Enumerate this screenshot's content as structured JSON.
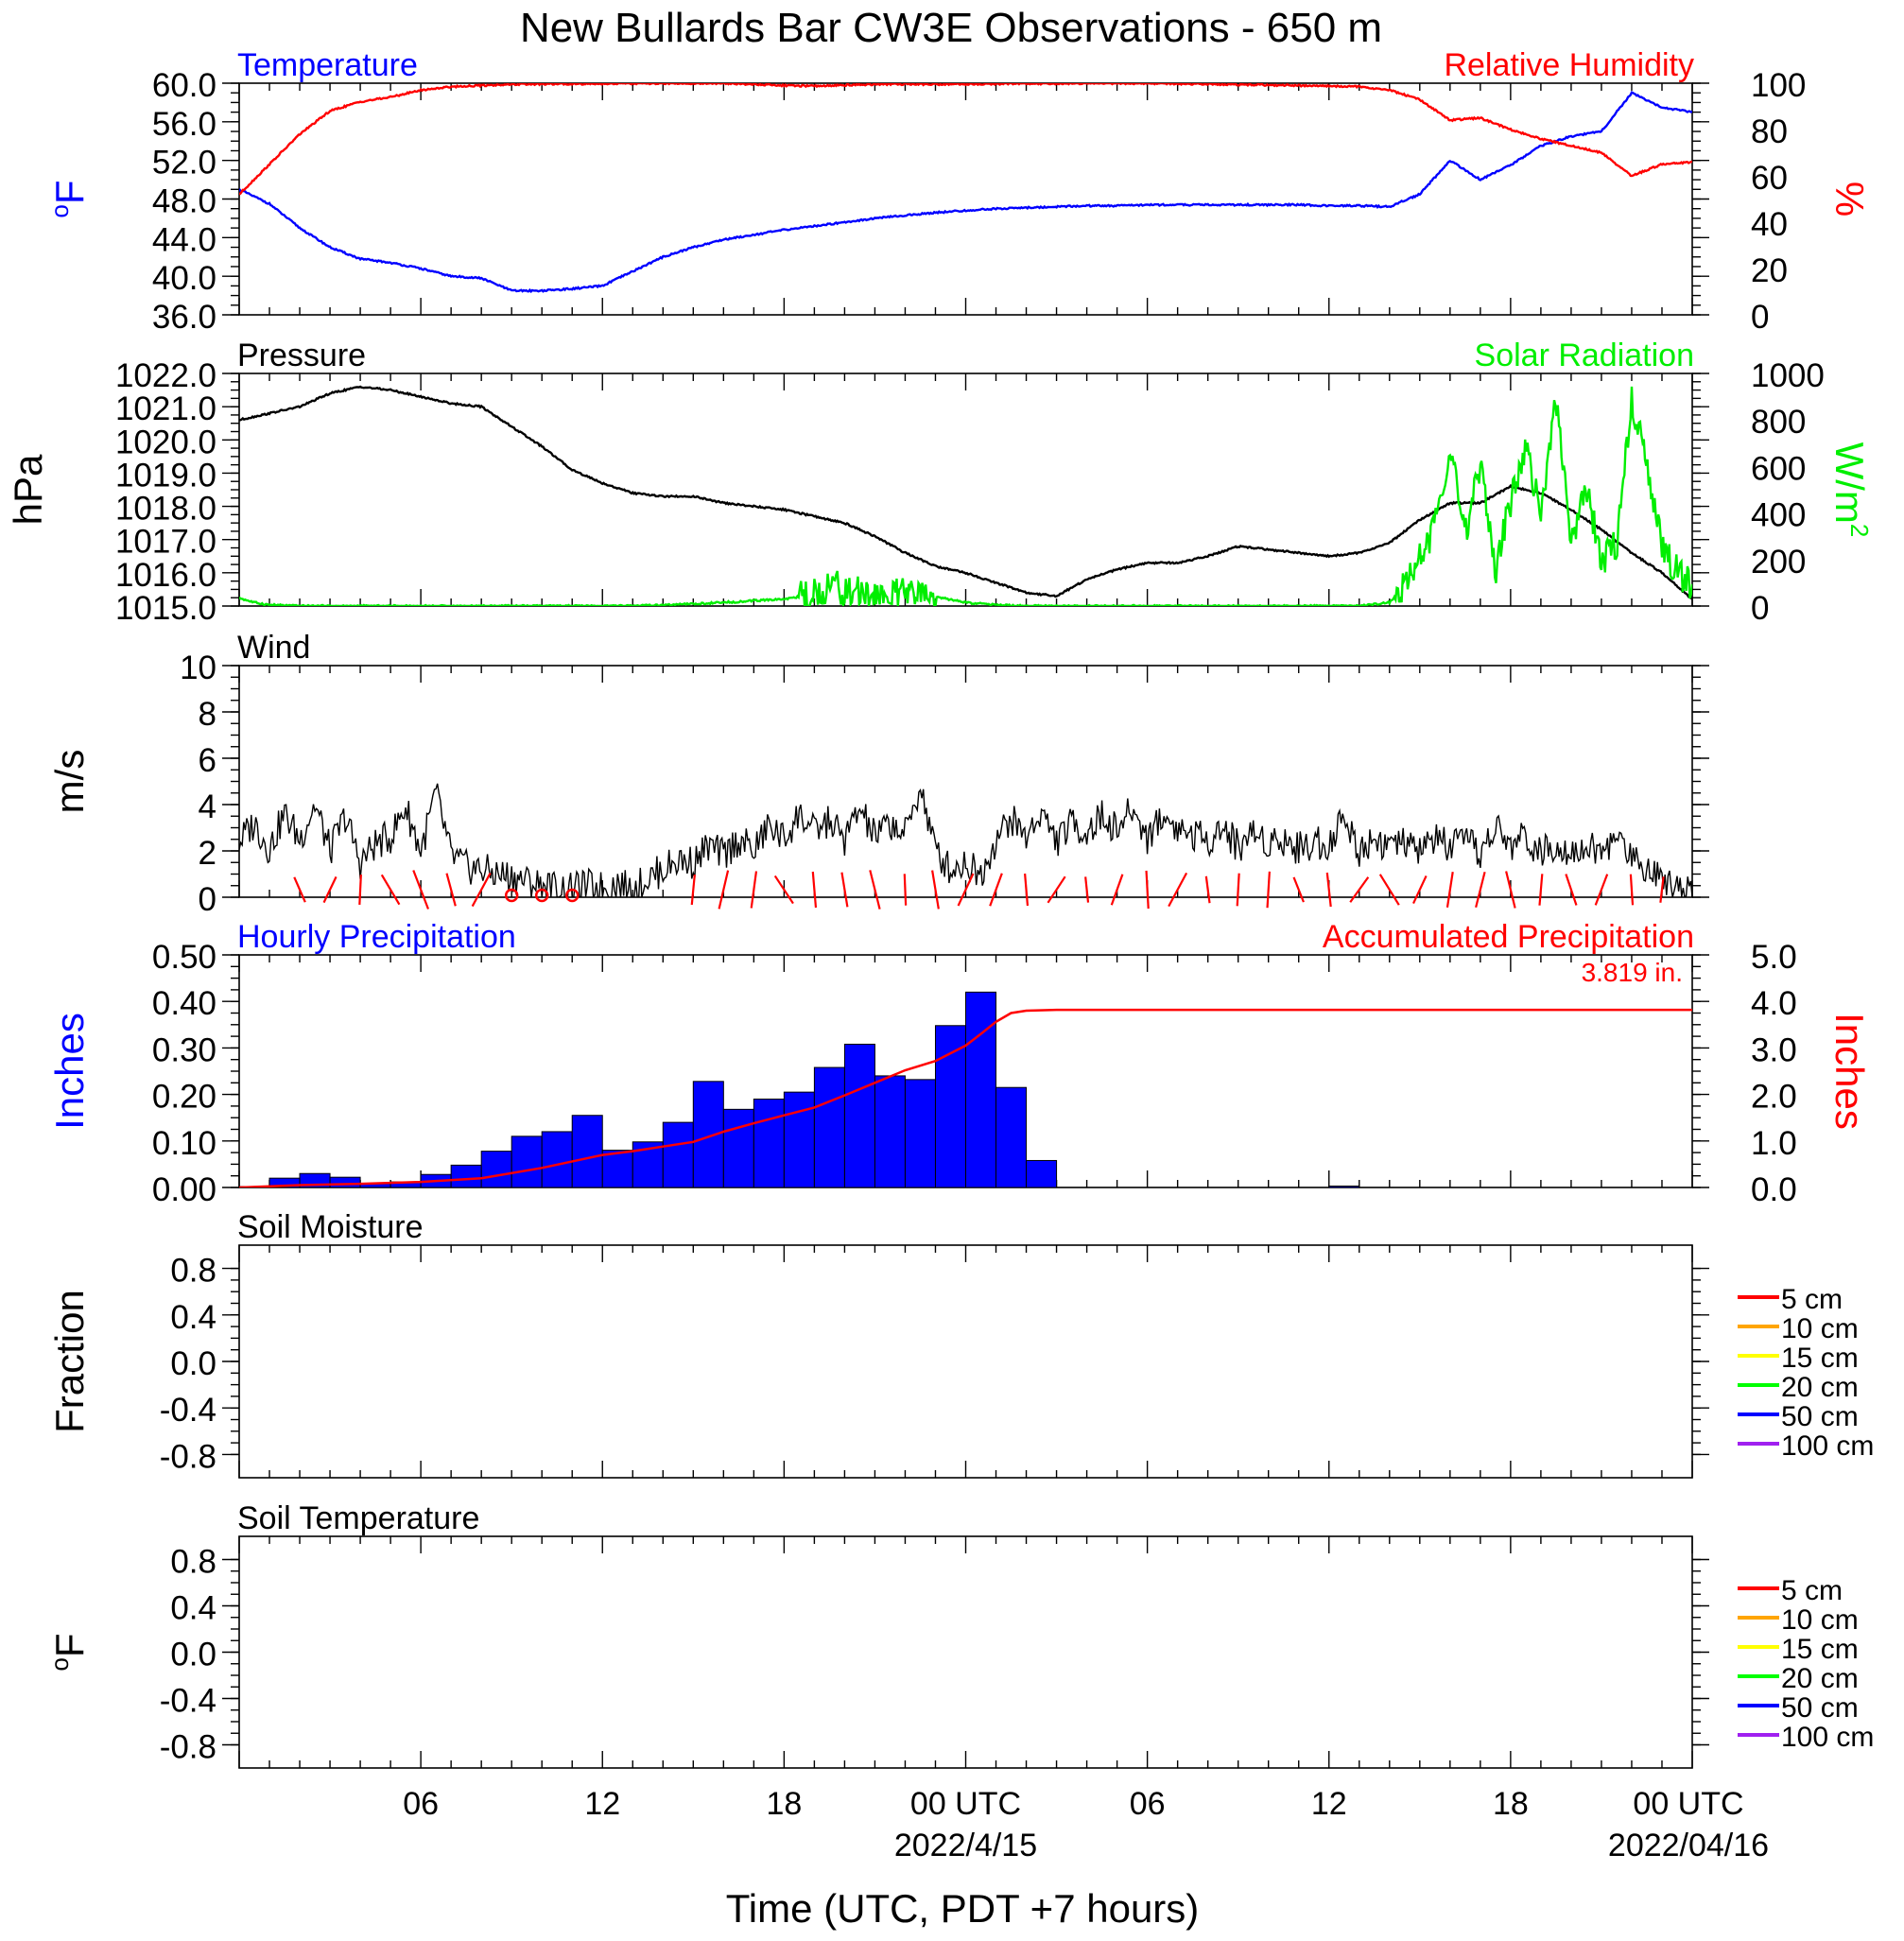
{
  "page_title": "New Bullards Bar CW3E Observations - 650 m",
  "x_axis": {
    "label": "Time (UTC, PDT +7 hours)",
    "range_hours": [
      0,
      48
    ],
    "tick_labels": [
      {
        "hour": 6,
        "text": "06"
      },
      {
        "hour": 12,
        "text": "12"
      },
      {
        "hour": 18,
        "text": "18"
      },
      {
        "hour": 24,
        "text": "00 UTC"
      },
      {
        "hour": 30,
        "text": "06"
      },
      {
        "hour": 36,
        "text": "12"
      },
      {
        "hour": 42,
        "text": "18"
      },
      {
        "hour": 48,
        "text": "00 UTC"
      }
    ],
    "date_labels": [
      {
        "hour": 24,
        "text": "2022/4/15"
      },
      {
        "hour": 48,
        "text": "2022/04/16"
      }
    ]
  },
  "chart_data": [
    {
      "type": "line",
      "title_left": "Temperature",
      "title_right": "Relative Humidity",
      "ylabel_left": "°F",
      "ylabel_right": "%",
      "ylim_left": [
        36,
        60
      ],
      "ylim_right": [
        0,
        100
      ],
      "yticks_left": [
        "36.0",
        "40.0",
        "44.0",
        "48.0",
        "52.0",
        "56.0",
        "60.0"
      ],
      "yticks_right": [
        "0",
        "20",
        "40",
        "60",
        "80",
        "100"
      ],
      "colors": {
        "left": "#0000ff",
        "right": "#ff0000"
      },
      "series": [
        {
          "name": "Temperature",
          "axis": "left",
          "x": [
            0,
            1,
            2,
            3,
            4,
            5,
            6,
            7,
            8,
            9,
            10,
            11,
            12,
            13,
            14,
            15,
            16,
            17,
            18,
            19,
            20,
            21,
            22,
            23,
            24,
            25,
            26,
            27,
            28,
            29,
            30,
            31,
            32,
            33,
            34,
            35,
            36,
            37,
            38,
            39,
            40,
            41,
            42,
            43,
            44,
            45,
            46,
            47,
            48
          ],
          "y": [
            49,
            47.5,
            45,
            43,
            41.8,
            41.4,
            40.8,
            40,
            39.8,
            38.5,
            38.5,
            38.7,
            39,
            40.5,
            42,
            43,
            43.8,
            44.3,
            44.8,
            45.2,
            45.6,
            46,
            46.3,
            46.6,
            46.8,
            47,
            47.1,
            47.2,
            47.3,
            47.3,
            47.4,
            47.4,
            47.4,
            47.4,
            47.4,
            47.4,
            47.3,
            47.3,
            47.2,
            48.5,
            52,
            50,
            51.5,
            53.5,
            54.5,
            55,
            59,
            57.5,
            57
          ]
        },
        {
          "name": "Relative Humidity",
          "axis": "right",
          "x": [
            0,
            1,
            2,
            3,
            4,
            5,
            6,
            7,
            8,
            9,
            10,
            11,
            12,
            13,
            14,
            15,
            16,
            17,
            18,
            19,
            20,
            21,
            22,
            23,
            24,
            25,
            26,
            27,
            28,
            29,
            30,
            31,
            32,
            33,
            34,
            35,
            36,
            37,
            38,
            39,
            40,
            41,
            42,
            43,
            44,
            45,
            46,
            47,
            48
          ],
          "y": [
            52,
            65,
            78,
            88,
            92,
            94,
            97,
            98.5,
            99,
            99.5,
            99.6,
            99.7,
            99.8,
            99.9,
            99.9,
            99.9,
            99.9,
            99.5,
            99,
            98.8,
            99.2,
            99.5,
            99.6,
            99.5,
            99.6,
            99.7,
            99.8,
            99.8,
            99.9,
            99.9,
            99.9,
            99.8,
            99.6,
            99.4,
            99.2,
            99,
            98.8,
            98.5,
            97,
            93,
            84,
            85,
            80,
            76,
            73,
            70,
            60,
            65,
            66
          ]
        }
      ]
    },
    {
      "type": "line",
      "title_left": "Pressure",
      "title_right": "Solar Radiation",
      "ylabel_left": "hPa",
      "ylabel_right": "W/m2",
      "ylim_left": [
        1015,
        1022
      ],
      "ylim_right": [
        0,
        1000
      ],
      "yticks_left": [
        "1015.0",
        "1016.0",
        "1017.0",
        "1018.0",
        "1019.0",
        "1020.0",
        "1021.0",
        "1022.0"
      ],
      "yticks_right": [
        "0",
        "200",
        "400",
        "600",
        "800",
        "1000"
      ],
      "colors": {
        "left": "#000000",
        "right": "#00ee00"
      },
      "series": [
        {
          "name": "Pressure",
          "axis": "left",
          "x": [
            0,
            1,
            2,
            3,
            4,
            5,
            6,
            7,
            8,
            9,
            10,
            11,
            12,
            13,
            14,
            15,
            16,
            17,
            18,
            19,
            20,
            21,
            22,
            23,
            24,
            25,
            26,
            27,
            28,
            29,
            30,
            31,
            32,
            33,
            34,
            35,
            36,
            37,
            38,
            39,
            40,
            41,
            42,
            43,
            44,
            45,
            46,
            47,
            48
          ],
          "y": [
            1020.6,
            1020.8,
            1021.0,
            1021.4,
            1021.6,
            1021.5,
            1021.3,
            1021.1,
            1021.0,
            1020.4,
            1019.8,
            1019.1,
            1018.7,
            1018.4,
            1018.3,
            1018.3,
            1018.1,
            1018.0,
            1017.9,
            1017.7,
            1017.5,
            1017.1,
            1016.6,
            1016.2,
            1016.0,
            1015.7,
            1015.4,
            1015.3,
            1015.8,
            1016.1,
            1016.3,
            1016.3,
            1016.5,
            1016.8,
            1016.7,
            1016.6,
            1016.5,
            1016.6,
            1016.9,
            1017.6,
            1018.1,
            1018.1,
            1018.6,
            1018.4,
            1017.9,
            1017.3,
            1016.6,
            1016.0,
            1015.2
          ]
        },
        {
          "name": "Solar Radiation",
          "axis": "right",
          "x": [
            0,
            0.5,
            1,
            2,
            4,
            6,
            8,
            10,
            12,
            14,
            16,
            18,
            19,
            19.5,
            20,
            21,
            22,
            23,
            24,
            25,
            26,
            28,
            30,
            32,
            35,
            37,
            38,
            38.5,
            39,
            39.5,
            40,
            40.5,
            41,
            41.5,
            42,
            42.5,
            43,
            43.5,
            44,
            44.5,
            45,
            45.5,
            46,
            46.5,
            47,
            47.5,
            48
          ],
          "y": [
            35,
            15,
            5,
            0,
            0,
            0,
            0,
            0,
            0,
            3,
            15,
            30,
            50,
            95,
            70,
            45,
            50,
            40,
            15,
            5,
            0,
            0,
            0,
            0,
            0,
            0,
            15,
            80,
            200,
            350,
            700,
            300,
            600,
            150,
            450,
            700,
            380,
            900,
            250,
            500,
            200,
            260,
            900,
            600,
            250,
            150,
            90
          ]
        }
      ]
    },
    {
      "type": "line",
      "title_left": "Wind",
      "ylabel_left": "m/s",
      "ylim_left": [
        0,
        10
      ],
      "yticks_left": [
        "0",
        "2",
        "4",
        "6",
        "8",
        "10"
      ],
      "colors": {
        "left": "#000000",
        "barbs": "#ff0000"
      },
      "series": [
        {
          "name": "Wind",
          "axis": "left",
          "x": [
            0,
            0.5,
            1,
            1.5,
            2,
            2.5,
            3,
            3.5,
            4,
            4.5,
            5,
            5.5,
            6,
            6.5,
            7,
            7.5,
            8,
            8.5,
            9,
            9.5,
            10,
            10.5,
            11,
            11.5,
            12,
            12.5,
            13,
            13.5,
            14,
            14.5,
            15,
            15.5,
            16,
            16.5,
            17,
            17.5,
            18,
            18.5,
            19,
            19.5,
            20,
            20.5,
            21,
            21.5,
            22,
            22.5,
            23,
            23.5,
            24,
            24.5,
            25,
            25.5,
            26,
            26.5,
            27,
            27.5,
            28,
            28.5,
            29,
            29.5,
            30,
            30.5,
            31,
            31.5,
            32,
            32.5,
            33,
            33.5,
            34,
            34.5,
            35,
            35.5,
            36,
            36.5,
            37,
            37.5,
            38,
            38.5,
            39,
            39.5,
            40,
            40.5,
            41,
            41.5,
            42,
            42.5,
            43,
            43.5,
            44,
            44.5,
            45,
            45.5,
            46,
            46.5,
            47,
            47.5,
            48
          ],
          "y": [
            2.4,
            3.2,
            2.1,
            3.6,
            2.5,
            4.0,
            2.0,
            3.5,
            1.5,
            2.3,
            2.6,
            3.9,
            2.0,
            4.5,
            1.8,
            1.3,
            1.2,
            1.0,
            0.9,
            0.7,
            0.5,
            0.4,
            0.3,
            0.5,
            0.4,
            0.6,
            0.3,
            0.8,
            1.2,
            1.6,
            1.5,
            2.2,
            1.8,
            2.5,
            2.0,
            3.1,
            2.5,
            3.6,
            2.8,
            3.3,
            2.5,
            3.8,
            2.6,
            3.2,
            2.7,
            4.8,
            2.0,
            1.2,
            1.5,
            1.0,
            2.5,
            3.4,
            2.6,
            3.7,
            2.4,
            3.2,
            2.8,
            3.5,
            2.9,
            3.8,
            2.6,
            3.5,
            3.0,
            2.7,
            2.5,
            3.0,
            2.2,
            2.8,
            2.4,
            2.5,
            2.1,
            2.4,
            2.3,
            3.5,
            2.0,
            2.6,
            2.2,
            2.3,
            2.0,
            2.6,
            2.1,
            2.4,
            1.9,
            3.0,
            2.2,
            2.7,
            1.8,
            2.4,
            2.0,
            2.2,
            1.9,
            2.6,
            1.8,
            1.3,
            0.9,
            0.6,
            0.4
          ]
        }
      ],
      "barb_hours": [
        2,
        3,
        4,
        5,
        6,
        7,
        8,
        9,
        10,
        11,
        15,
        16,
        17,
        18,
        19,
        20,
        21,
        22,
        23,
        24,
        25,
        26,
        27,
        28,
        29,
        30,
        31,
        32,
        33,
        34,
        35,
        36,
        37,
        38,
        39,
        40,
        41,
        42,
        43,
        44,
        45,
        46,
        47
      ],
      "calm_hours": [
        9,
        10,
        11
      ]
    },
    {
      "type": "bar",
      "title_left": "Hourly Precipitation",
      "title_right": "Accumulated Precipitation",
      "annotation": "3.819 in.",
      "ylabel_left": "Inches",
      "ylabel_right": "Inches",
      "ylim_left": [
        0,
        0.5
      ],
      "ylim_right": [
        0,
        5
      ],
      "yticks_left": [
        "0.00",
        "0.10",
        "0.20",
        "0.30",
        "0.40",
        "0.50"
      ],
      "yticks_right": [
        "0.0",
        "1.0",
        "2.0",
        "3.0",
        "4.0",
        "5.0"
      ],
      "colors": {
        "bars": "#0000ff",
        "line": "#ff0000"
      },
      "hours": [
        0,
        1,
        2,
        3,
        4,
        5,
        6,
        7,
        8,
        9,
        10,
        11,
        12,
        13,
        14,
        15,
        16,
        17,
        18,
        19,
        20,
        21,
        22,
        23,
        24,
        25,
        26
      ],
      "values": [
        0.002,
        0.02,
        0.03,
        0.022,
        0.008,
        0.012,
        0.028,
        0.048,
        0.078,
        0.11,
        0.12,
        0.155,
        0.08,
        0.098,
        0.14,
        0.228,
        0.168,
        0.19,
        0.205,
        0.258,
        0.308,
        0.24,
        0.232,
        0.348,
        0.42,
        0.215,
        0.058
      ],
      "extra_bar": {
        "hour": 36,
        "value": 0.003
      },
      "series": [
        {
          "name": "Accumulated Precipitation",
          "axis": "right",
          "x": [
            0,
            2,
            4,
            6,
            8,
            10,
            12,
            13,
            14,
            15,
            16,
            17,
            18,
            19,
            20,
            21,
            22,
            23,
            24,
            24.5,
            25,
            25.5,
            26,
            27,
            48
          ],
          "y": [
            0,
            0.05,
            0.08,
            0.12,
            0.2,
            0.42,
            0.7,
            0.78,
            0.88,
            0.98,
            1.2,
            1.38,
            1.55,
            1.72,
            1.98,
            2.25,
            2.52,
            2.72,
            3.05,
            3.3,
            3.56,
            3.75,
            3.8,
            3.819,
            3.819
          ]
        }
      ]
    },
    {
      "type": "line",
      "title_left": "Soil Moisture",
      "ylabel_left": "Fraction",
      "ylim_left": [
        -1,
        1
      ],
      "yticks_left": [
        "-0.8",
        "-0.4",
        "0.0",
        "0.4",
        "0.8"
      ],
      "legend": [
        {
          "label": "5 cm",
          "color": "#ff0000"
        },
        {
          "label": "10 cm",
          "color": "#ffa500"
        },
        {
          "label": "15 cm",
          "color": "#ffff00"
        },
        {
          "label": "20 cm",
          "color": "#00ff00"
        },
        {
          "label": "50 cm",
          "color": "#0000ff"
        },
        {
          "label": "100 cm",
          "color": "#a020f0"
        }
      ],
      "series": []
    },
    {
      "type": "line",
      "title_left": "Soil Temperature",
      "ylabel_left": "°F",
      "ylim_left": [
        -1,
        1
      ],
      "yticks_left": [
        "-0.8",
        "-0.4",
        "0.0",
        "0.4",
        "0.8"
      ],
      "legend": [
        {
          "label": "5 cm",
          "color": "#ff0000"
        },
        {
          "label": "10 cm",
          "color": "#ffa500"
        },
        {
          "label": "15 cm",
          "color": "#ffff00"
        },
        {
          "label": "20 cm",
          "color": "#00ff00"
        },
        {
          "label": "50 cm",
          "color": "#0000ff"
        },
        {
          "label": "100 cm",
          "color": "#a020f0"
        }
      ],
      "series": []
    }
  ]
}
